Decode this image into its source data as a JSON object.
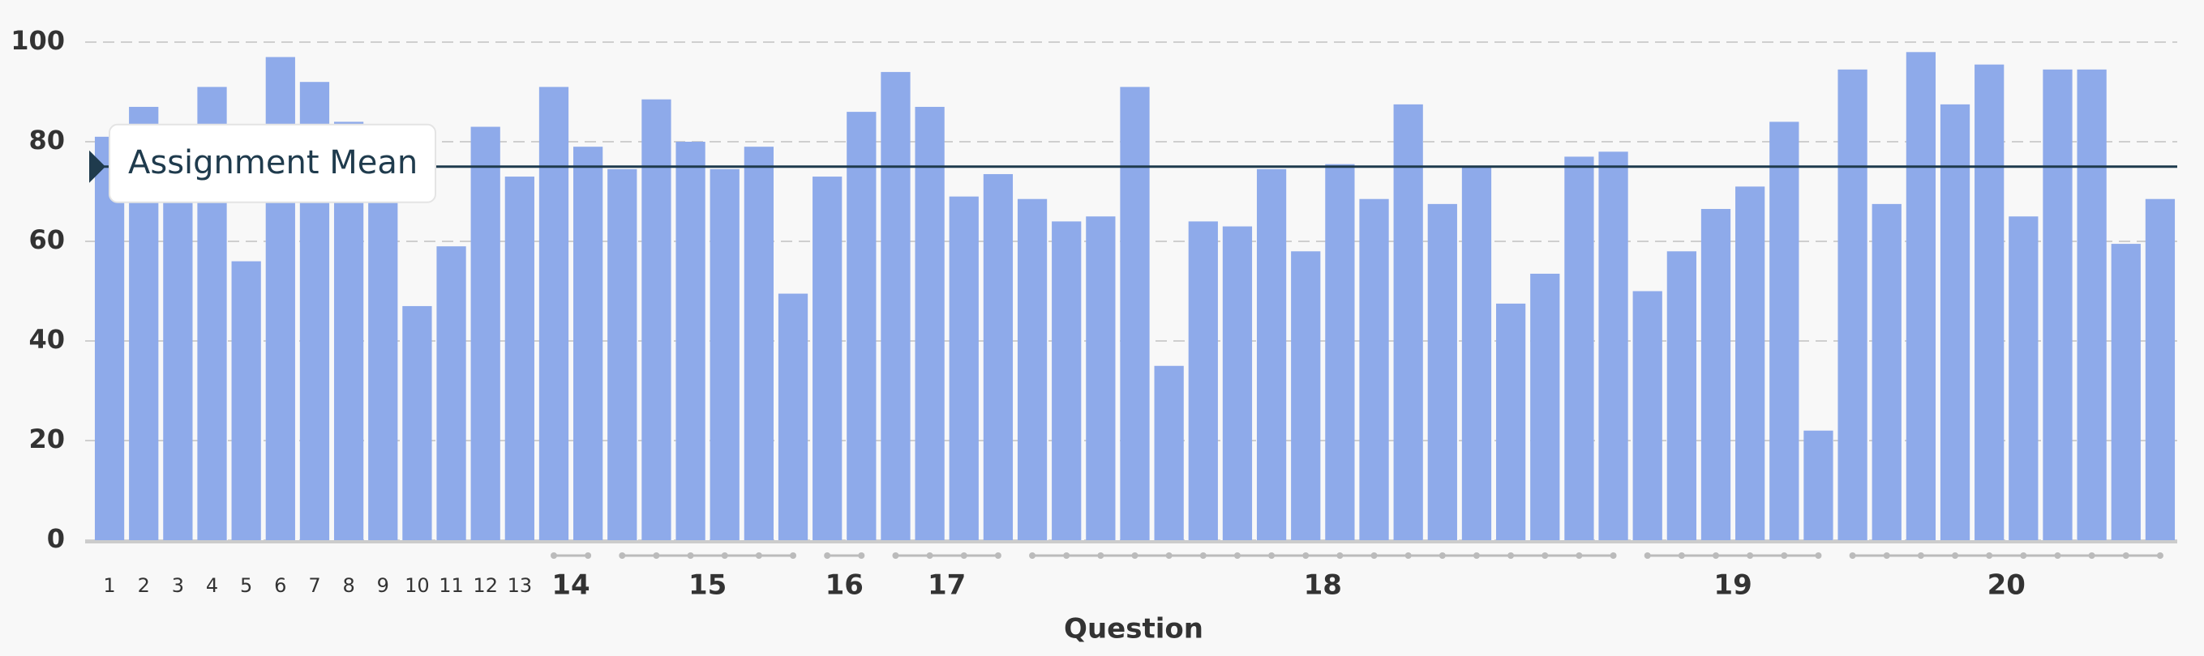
{
  "chart_data": {
    "type": "bar",
    "x_label": "Question",
    "groups": [
      {
        "label": "1",
        "values": [
          81
        ]
      },
      {
        "label": "2",
        "values": [
          87
        ]
      },
      {
        "label": "3",
        "values": [
          80
        ]
      },
      {
        "label": "4",
        "values": [
          91
        ]
      },
      {
        "label": "5",
        "values": [
          56
        ]
      },
      {
        "label": "6",
        "values": [
          97
        ]
      },
      {
        "label": "7",
        "values": [
          92
        ]
      },
      {
        "label": "8",
        "values": [
          84
        ]
      },
      {
        "label": "9",
        "values": [
          78
        ]
      },
      {
        "label": "10",
        "values": [
          47
        ]
      },
      {
        "label": "11",
        "values": [
          59
        ]
      },
      {
        "label": "12",
        "values": [
          83
        ]
      },
      {
        "label": "13",
        "values": [
          73
        ]
      },
      {
        "label": "14",
        "values": [
          91,
          79
        ]
      },
      {
        "label": "15",
        "values": [
          74.5,
          88.5,
          80,
          74.5,
          79,
          49.5
        ]
      },
      {
        "label": "16",
        "values": [
          73,
          86
        ]
      },
      {
        "label": "17",
        "values": [
          94,
          87,
          69,
          73.5
        ]
      },
      {
        "label": "18",
        "values": [
          68.5,
          64,
          65,
          91,
          35,
          64,
          63,
          74.5,
          58,
          75.5,
          68.5,
          87.5,
          67.5,
          75,
          47.5,
          53.5,
          77,
          78
        ]
      },
      {
        "label": "19",
        "values": [
          50,
          58,
          66.5,
          71,
          84,
          22
        ]
      },
      {
        "label": "20",
        "values": [
          94.5,
          67.5,
          98,
          87.5,
          95.5,
          65,
          94.5,
          94.5,
          59.5,
          68.5
        ]
      }
    ],
    "color": "#8eaaea",
    "ylim": [
      0,
      100
    ],
    "yticks": [
      0,
      20,
      40,
      60,
      80,
      100
    ],
    "grid": true,
    "mean": {
      "label": "Assignment Mean",
      "value": 75,
      "color": "#1f3b4d"
    }
  }
}
